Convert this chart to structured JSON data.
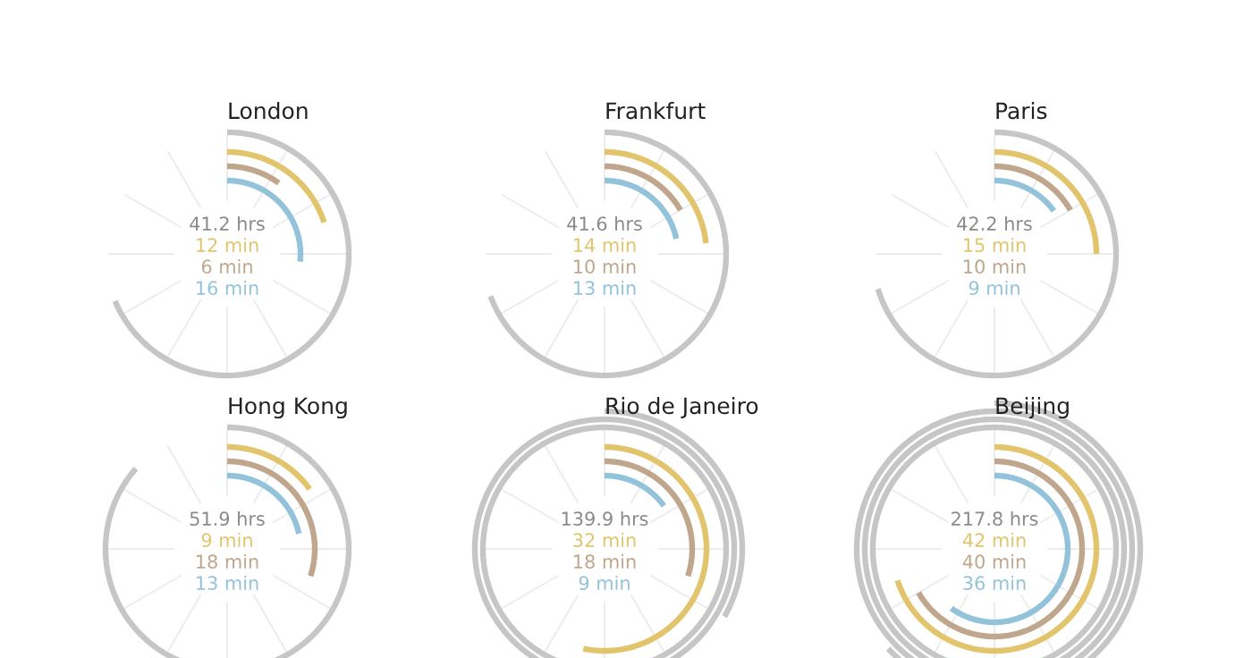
{
  "chart_data": [
    {
      "type": "other",
      "title": "London",
      "categories": [
        null,
        null,
        null,
        null
      ],
      "values": [
        41.2,
        12,
        6,
        16
      ],
      "value_labels": [
        "41.2 hrs",
        "12 min",
        "6 min",
        "16 min"
      ],
      "colors": [
        "#c6c6c6",
        "#e2c46c",
        "#bfa68c",
        "#93c3da"
      ]
    },
    {
      "type": "other",
      "title": "Frankfurt",
      "categories": [
        null,
        null,
        null,
        null
      ],
      "values": [
        41.6,
        14,
        10,
        13
      ],
      "value_labels": [
        "41.6 hrs",
        "14 min",
        "10 min",
        "13 min"
      ],
      "colors": [
        "#c6c6c6",
        "#e2c46c",
        "#bfa68c",
        "#93c3da"
      ]
    },
    {
      "type": "other",
      "title": "Paris",
      "categories": [
        null,
        null,
        null,
        null
      ],
      "values": [
        42.2,
        15,
        10,
        9
      ],
      "value_labels": [
        "42.2 hrs",
        "15 min",
        "10 min",
        "9 min"
      ],
      "colors": [
        "#c6c6c6",
        "#e2c46c",
        "#bfa68c",
        "#93c3da"
      ]
    },
    {
      "type": "other",
      "title": "Hong Kong",
      "categories": [
        null,
        null,
        null,
        null
      ],
      "values": [
        51.9,
        9,
        18,
        13
      ],
      "value_labels": [
        "51.9 hrs",
        "9 min",
        "18 min",
        "13 min"
      ],
      "colors": [
        "#c6c6c6",
        "#e2c46c",
        "#bfa68c",
        "#93c3da"
      ]
    },
    {
      "type": "other",
      "title": "Rio de Janeiro",
      "categories": [
        null,
        null,
        null,
        null
      ],
      "values": [
        139.9,
        32,
        18,
        9
      ],
      "value_labels": [
        "139.9 hrs",
        "32 min",
        "18 min",
        "9 min"
      ],
      "colors": [
        "#c6c6c6",
        "#e2c46c",
        "#bfa68c",
        "#93c3da"
      ]
    },
    {
      "type": "other",
      "title": "Beijing",
      "categories": [
        null,
        null,
        null,
        null
      ],
      "values": [
        217.8,
        42,
        40,
        36
      ],
      "value_labels": [
        "217.8 hrs",
        "42 min",
        "40 min",
        "36 min"
      ],
      "colors": [
        "#c6c6c6",
        "#e2c46c",
        "#bfa68c",
        "#93c3da"
      ]
    }
  ]
}
